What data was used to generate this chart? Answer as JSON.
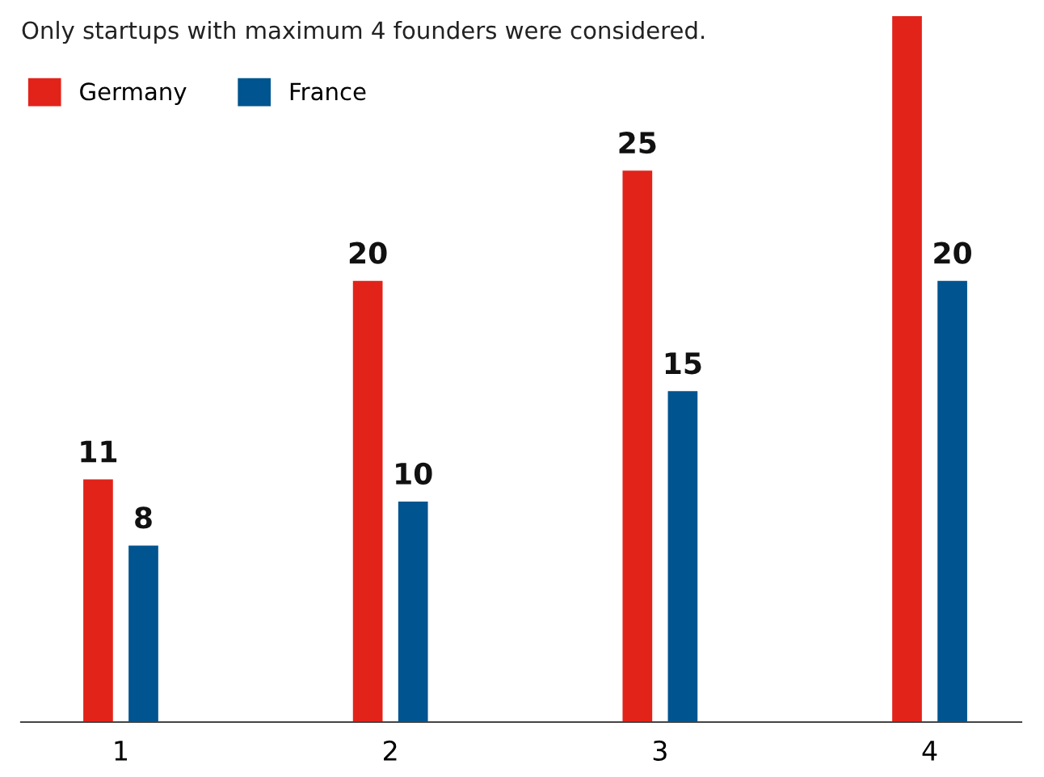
{
  "chart_data": {
    "type": "bar",
    "title": "Only startups with maximum 4 founders were considered.",
    "categories": [
      "1",
      "2",
      "3",
      "4"
    ],
    "series": [
      {
        "name": "Germany",
        "color": "#e2231a",
        "values": [
          11,
          20,
          25,
          32
        ],
        "value_labels": [
          "11",
          "20",
          "25",
          null
        ]
      },
      {
        "name": "France",
        "color": "#00548f",
        "values": [
          8,
          10,
          15,
          20
        ],
        "value_labels": [
          "8",
          "10",
          "15",
          "20"
        ]
      }
    ],
    "legend": "top left",
    "grid": false
  }
}
